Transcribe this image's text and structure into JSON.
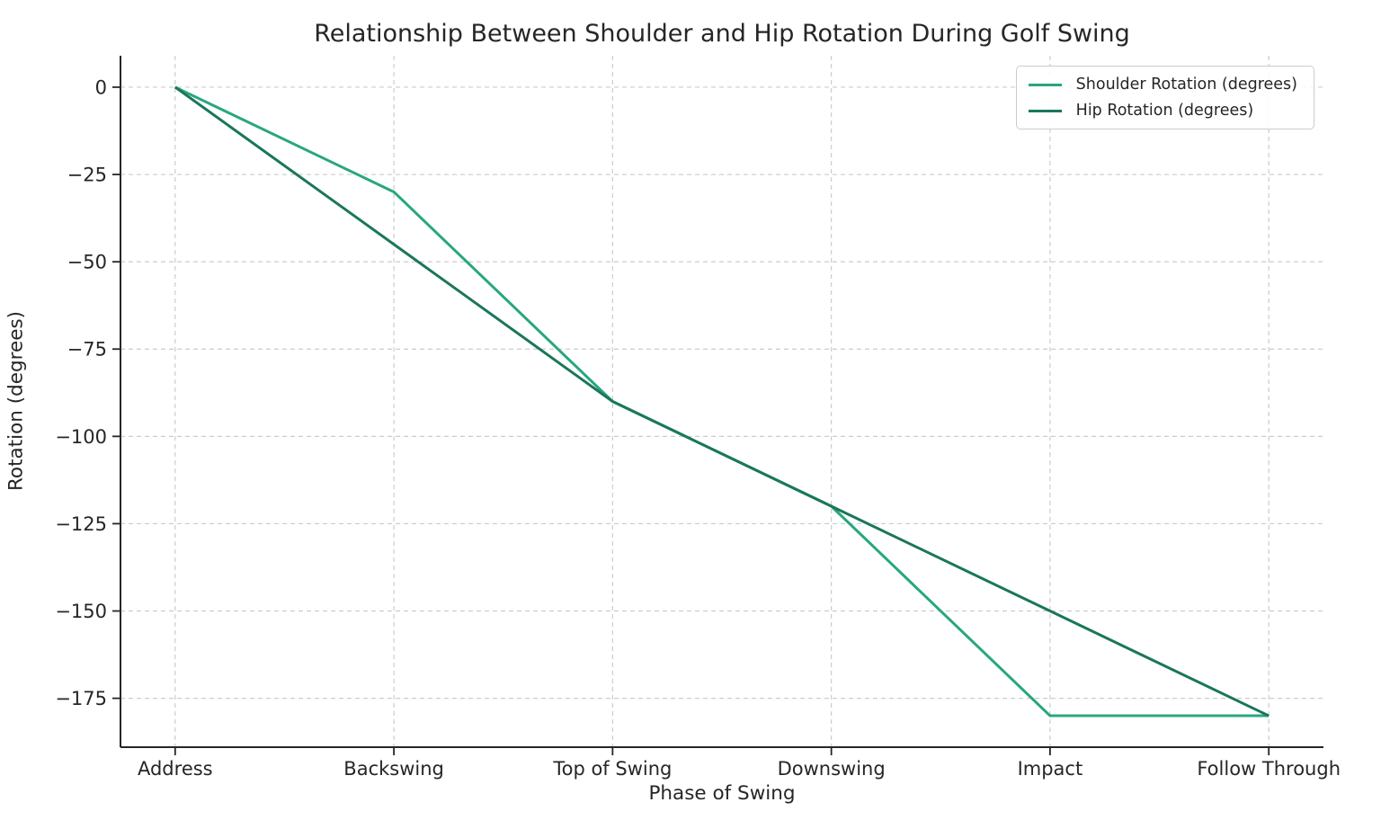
{
  "chart_data": {
    "type": "line",
    "title": "Relationship Between Shoulder and Hip Rotation During Golf Swing",
    "xlabel": "Phase of Swing",
    "ylabel": "Rotation (degrees)",
    "categories": [
      "Address",
      "Backswing",
      "Top of Swing",
      "Downswing",
      "Impact",
      "Follow Through"
    ],
    "series": [
      {
        "name": "Shoulder Rotation (degrees)",
        "color": "#27a77e",
        "values": [
          0,
          -30,
          -90,
          -120,
          -180,
          -180
        ]
      },
      {
        "name": "Hip Rotation (degrees)",
        "color": "#1a765c",
        "values": [
          0,
          -45,
          -90,
          -120,
          -150,
          -180
        ]
      }
    ],
    "ylim": [
      -189,
      9
    ],
    "x_margin": 0.25,
    "ytick_values": [
      0,
      -25,
      -50,
      -75,
      -100,
      -125,
      -150,
      -175
    ],
    "ytick_labels": [
      "0",
      "−25",
      "−50",
      "−75",
      "−100",
      "−125",
      "−150",
      "−175"
    ],
    "grid": true,
    "grid_style": "dashed",
    "legend_position": "upper right",
    "line_width": 3,
    "colors": {
      "text": "#262626",
      "grid": "#cccccc",
      "spine": "#262626",
      "legend_border": "#cccccc",
      "background": "#ffffff"
    }
  }
}
